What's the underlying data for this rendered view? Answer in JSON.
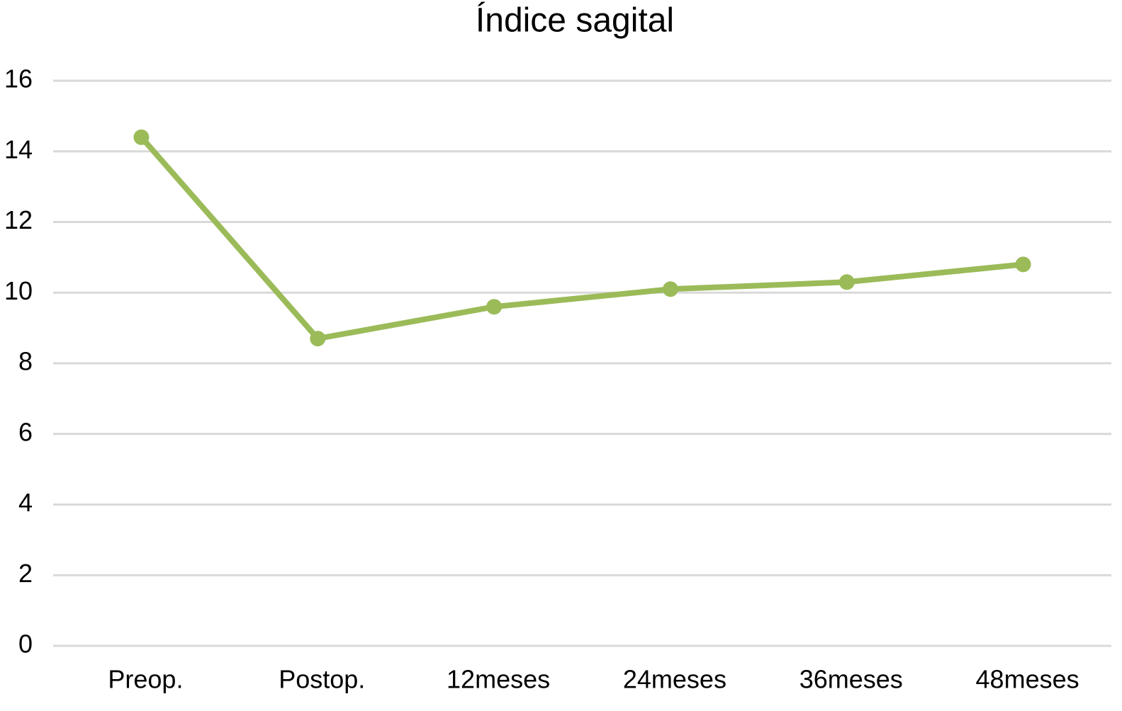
{
  "chart_data": {
    "type": "line",
    "title": "Índice sagital",
    "categories": [
      "Preop.",
      "Postop.",
      "12meses",
      "24meses",
      "36meses",
      "48meses"
    ],
    "values": [
      14.4,
      8.7,
      9.6,
      10.1,
      10.3,
      10.8
    ],
    "color": "#9bbb59",
    "ylim": [
      0,
      16
    ],
    "yticks": [
      0,
      2,
      4,
      6,
      8,
      10,
      12,
      14,
      16
    ],
    "grid": true
  }
}
